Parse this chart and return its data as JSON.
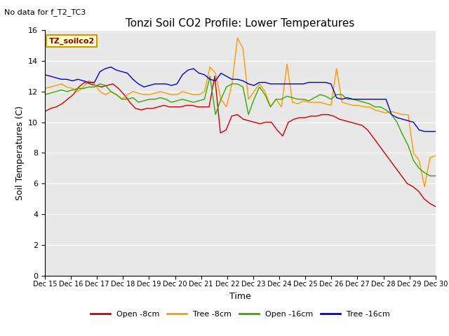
{
  "title": "Tonzi Soil CO2 Profile: Lower Temperatures",
  "subtitle": "No data for f_T2_TC3",
  "ylabel": "Soil Temperatures (C)",
  "xlabel": "Time",
  "legend_label": "TZ_soilco2",
  "ylim": [
    0,
    16
  ],
  "yticks": [
    0,
    2,
    4,
    6,
    8,
    10,
    12,
    14,
    16
  ],
  "bg_color": "#e8e8e8",
  "series_colors": {
    "open_8": "#cc0000",
    "tree_8": "#ff9900",
    "open_16": "#33aa00",
    "tree_16": "#0000cc"
  },
  "series_labels": [
    "Open -8cm",
    "Tree -8cm",
    "Open -16cm",
    "Tree -16cm"
  ],
  "x_tick_labels": [
    "Dec 15",
    "Dec 16",
    "Dec 17",
    "Dec 18",
    "Dec 19",
    "Dec 20",
    "Dec 21",
    "Dec 22",
    "Dec 23",
    "Dec 24",
    "Dec 25",
    "Dec 26",
    "Dec 27",
    "Dec 28",
    "Dec 29",
    "Dec 30"
  ],
  "open_8cm": [
    10.7,
    10.9,
    11.0,
    11.2,
    11.5,
    11.8,
    12.3,
    12.6,
    12.5,
    12.4,
    12.3,
    12.4,
    12.5,
    12.2,
    11.8,
    11.3,
    10.9,
    10.8,
    10.9,
    10.9,
    11.0,
    11.1,
    11.0,
    11.0,
    11.0,
    11.1,
    11.1,
    11.0,
    11.0,
    11.0,
    13.0,
    9.3,
    9.5,
    10.4,
    10.5,
    10.2,
    10.1,
    10.0,
    9.9,
    10.0,
    10.0,
    9.5,
    9.1,
    10.0,
    10.2,
    10.3,
    10.3,
    10.4,
    10.4,
    10.5,
    10.5,
    10.4,
    10.2,
    10.1,
    10.0,
    9.9,
    9.8,
    9.5,
    9.0,
    8.5,
    8.0,
    7.5,
    7.0,
    6.5,
    6.0,
    5.8,
    5.5,
    5.0,
    4.7,
    4.5
  ],
  "tree_8cm": [
    12.2,
    12.3,
    12.4,
    12.5,
    12.3,
    12.2,
    12.0,
    12.3,
    12.7,
    12.5,
    12.0,
    11.8,
    12.0,
    11.8,
    11.5,
    11.8,
    12.0,
    11.9,
    11.8,
    11.8,
    11.9,
    12.0,
    11.9,
    11.8,
    11.8,
    12.0,
    11.9,
    11.8,
    11.8,
    12.0,
    13.6,
    13.2,
    11.5,
    11.0,
    12.5,
    15.5,
    14.8,
    11.5,
    12.0,
    12.5,
    12.0,
    11.0,
    11.5,
    11.0,
    13.8,
    11.3,
    11.2,
    11.4,
    11.3,
    11.3,
    11.3,
    11.2,
    11.1,
    13.5,
    11.3,
    11.2,
    11.1,
    11.1,
    11.0,
    11.0,
    10.8,
    10.7,
    10.6,
    10.7,
    10.6,
    10.5,
    10.5,
    8.0,
    7.5,
    5.8,
    7.7,
    7.8
  ],
  "open_16cm": [
    11.8,
    11.9,
    12.0,
    12.1,
    12.0,
    12.1,
    12.2,
    12.2,
    12.3,
    12.3,
    12.5,
    12.4,
    12.0,
    11.8,
    11.5,
    11.5,
    11.6,
    11.3,
    11.4,
    11.5,
    11.5,
    11.6,
    11.5,
    11.3,
    11.4,
    11.5,
    11.4,
    11.3,
    11.4,
    11.5,
    13.0,
    10.5,
    11.5,
    12.3,
    12.5,
    12.5,
    12.3,
    10.5,
    11.5,
    12.3,
    11.8,
    11.0,
    11.5,
    11.5,
    11.7,
    11.6,
    11.5,
    11.5,
    11.4,
    11.6,
    11.8,
    11.7,
    11.5,
    11.8,
    11.8,
    11.5,
    11.5,
    11.4,
    11.3,
    11.2,
    11.0,
    11.0,
    10.8,
    10.5,
    10.0,
    9.2,
    8.5,
    7.5,
    7.0,
    6.7,
    6.5,
    6.5
  ],
  "tree_16cm": [
    13.1,
    13.0,
    12.9,
    12.8,
    12.8,
    12.7,
    12.8,
    12.7,
    12.6,
    12.6,
    13.3,
    13.5,
    13.6,
    13.4,
    13.3,
    13.2,
    12.8,
    12.5,
    12.3,
    12.4,
    12.5,
    12.5,
    12.5,
    12.4,
    12.5,
    13.1,
    13.4,
    13.5,
    13.2,
    13.1,
    12.8,
    12.7,
    13.2,
    13.0,
    12.8,
    12.8,
    12.7,
    12.5,
    12.4,
    12.6,
    12.6,
    12.5,
    12.5,
    12.5,
    12.5,
    12.5,
    12.5,
    12.5,
    12.6,
    12.6,
    12.6,
    12.6,
    12.5,
    11.6,
    11.5,
    11.6,
    11.5,
    11.5,
    11.5,
    11.5,
    11.5,
    11.5,
    11.5,
    10.5,
    10.3,
    10.2,
    10.1,
    10.0,
    9.5,
    9.4,
    9.4,
    9.4
  ]
}
